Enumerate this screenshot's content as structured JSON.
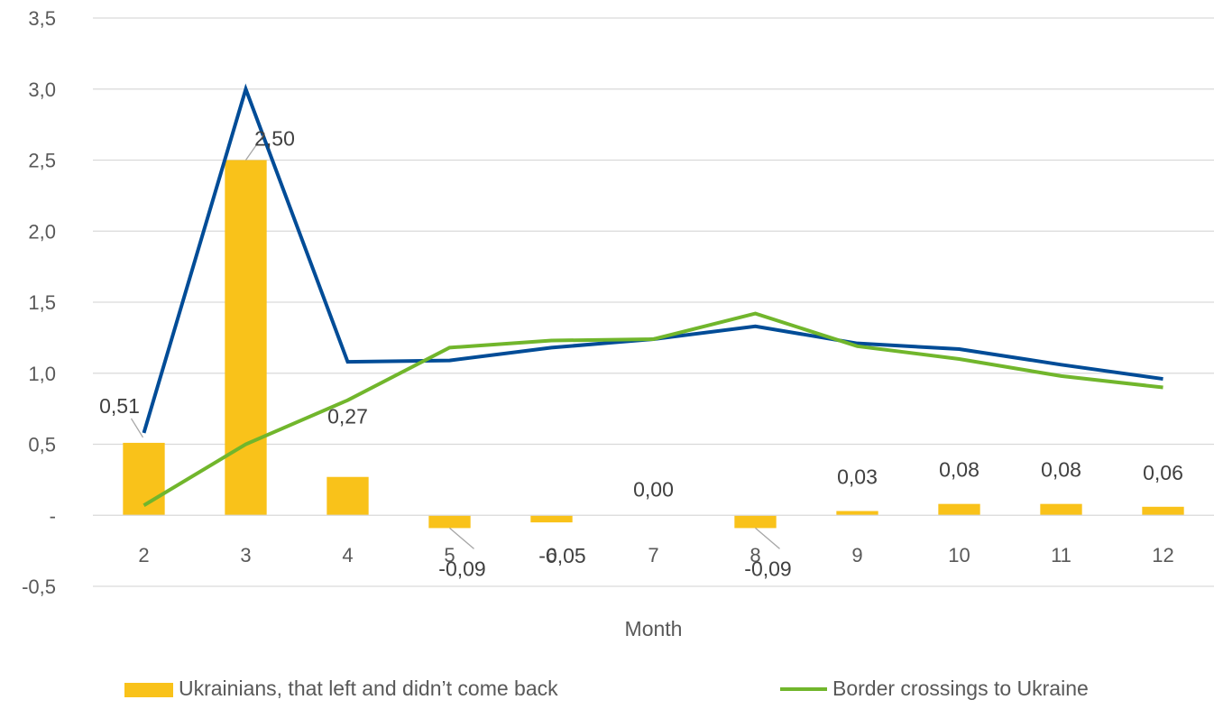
{
  "chart_data": {
    "type": "bar",
    "xlabel": "Month",
    "ylabel": "",
    "ylim": [
      -0.5,
      3.5
    ],
    "yticks": [
      {
        "value": -0.5,
        "label": "-0,5"
      },
      {
        "value": 0,
        "label": "-"
      },
      {
        "value": 0.5,
        "label": "0,5"
      },
      {
        "value": 1.0,
        "label": "1,0"
      },
      {
        "value": 1.5,
        "label": "1,5"
      },
      {
        "value": 2.0,
        "label": "2,0"
      },
      {
        "value": 2.5,
        "label": "2,5"
      },
      {
        "value": 3.0,
        "label": "3,0"
      },
      {
        "value": 3.5,
        "label": "3,5"
      }
    ],
    "grid": true,
    "legend_position": "bottom",
    "categories": [
      "2",
      "3",
      "4",
      "5",
      "6",
      "7",
      "8",
      "9",
      "10",
      "11",
      "12"
    ],
    "series": [
      {
        "name": "Ukrainians, that left and didn’t come back",
        "type": "bar",
        "color": "#F9C21A",
        "values": [
          0.51,
          2.5,
          0.27,
          -0.09,
          -0.05,
          0.0,
          -0.09,
          0.03,
          0.08,
          0.08,
          0.06
        ],
        "labels": [
          "0,51",
          "2,50",
          "0,27",
          "-0,09",
          "-0,05",
          "0,00",
          "-0,09",
          "0,03",
          "0,08",
          "0,08",
          "0,06"
        ]
      },
      {
        "name": "",
        "type": "line",
        "color": "#004C97",
        "values": [
          0.58,
          3.0,
          1.08,
          1.09,
          1.18,
          1.24,
          1.33,
          1.21,
          1.17,
          1.06,
          0.96
        ]
      },
      {
        "name": "Border crossings to Ukraine",
        "type": "line",
        "color": "#71B62C",
        "values": [
          0.07,
          0.5,
          0.81,
          1.18,
          1.23,
          1.24,
          1.42,
          1.19,
          1.1,
          0.98,
          0.9
        ]
      }
    ]
  }
}
